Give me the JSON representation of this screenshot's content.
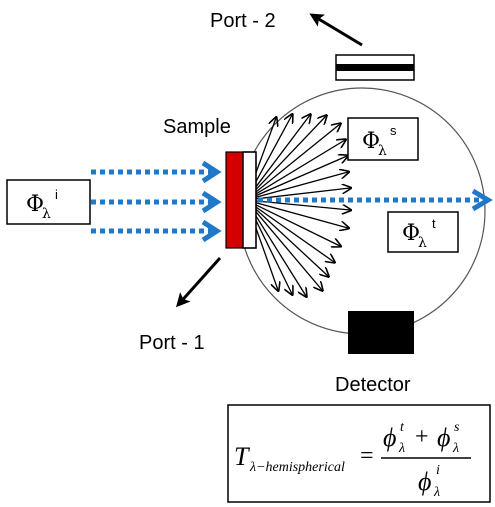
{
  "labels": {
    "port2": "Port - 2",
    "port1": "Port - 1",
    "sample": "Sample",
    "detector": "Detector"
  },
  "flux": {
    "symbol": "Φ",
    "subscript": "λ",
    "incident_sup": "i",
    "scattered_sup": "s",
    "transmitted_sup": "t"
  },
  "formula": {
    "lhs_symbol": "T",
    "lhs_subscript": "λ−hemispherical",
    "equals": "=",
    "num_symbol": "ϕ",
    "num_sub": "λ",
    "num_sup_t": "t",
    "plus": "+",
    "num_sup_s": "s",
    "den_symbol": "ϕ",
    "den_sub": "λ",
    "den_sup": "i"
  },
  "colors": {
    "beam": "#1f78c8",
    "sample": "#d40000",
    "detector": "#000000",
    "sphere": "#555555"
  }
}
